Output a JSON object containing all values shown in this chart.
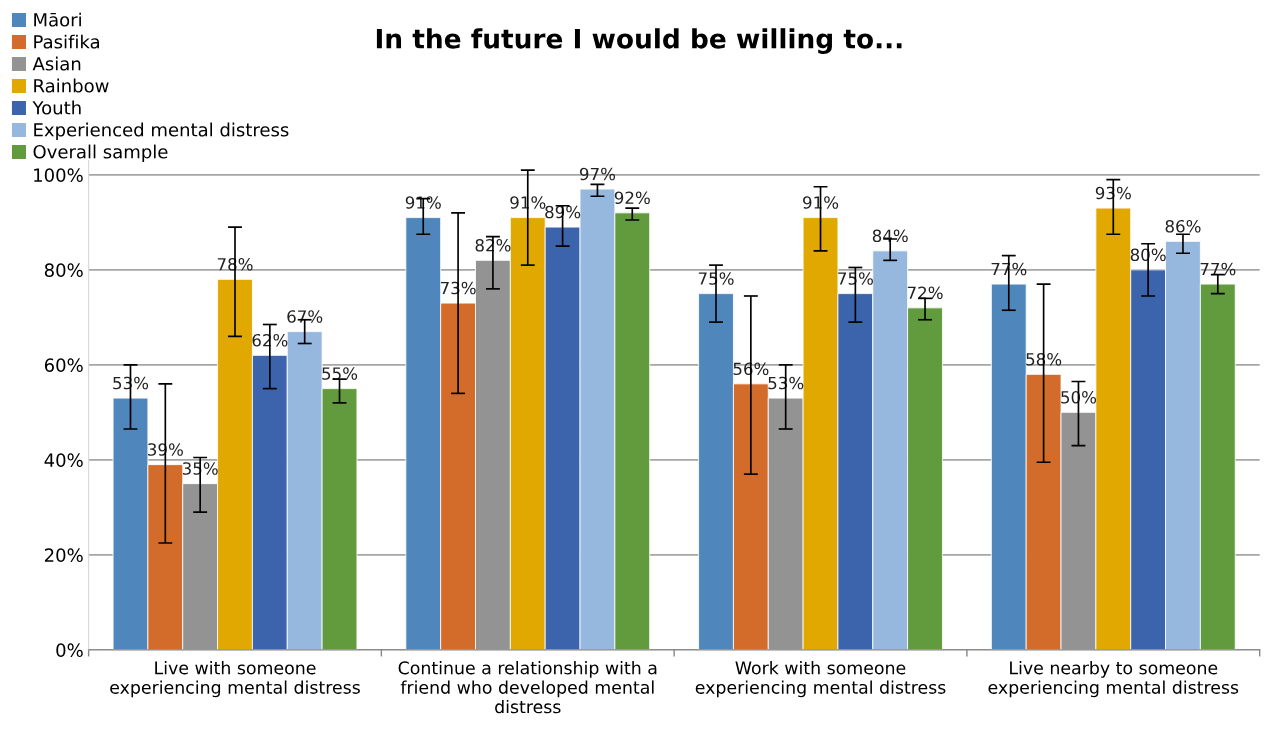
{
  "chart_data": {
    "type": "bar",
    "title": "In the future I would be willing to...",
    "categories": [
      "Live with someone\nexperiencing mental distress",
      "Continue a relationship with a\nfriend who developed mental\ndistress",
      "Work with someone\nexperiencing mental distress",
      "Live nearby to someone\nexperiencing mental distress"
    ],
    "series": [
      {
        "name": "Māori",
        "color": "#4f87bd",
        "values": [
          53,
          91,
          75,
          77
        ],
        "errors": [
          [
            46.5,
            60
          ],
          [
            87.5,
            95
          ],
          [
            69,
            81
          ],
          [
            71.5,
            83
          ]
        ],
        "value_labels": [
          "53%",
          "91%",
          "75%",
          "77%"
        ]
      },
      {
        "name": "Pasifika",
        "color": "#d36c2b",
        "values": [
          39,
          73,
          56,
          58
        ],
        "errors": [
          [
            22.5,
            56
          ],
          [
            54,
            92
          ],
          [
            37,
            74.5
          ],
          [
            39.5,
            77
          ]
        ],
        "value_labels": [
          "39%",
          "73%",
          "56%",
          "58%"
        ]
      },
      {
        "name": "Asian",
        "color": "#939393",
        "values": [
          35,
          82,
          53,
          50
        ],
        "errors": [
          [
            29,
            40.5
          ],
          [
            76,
            87
          ],
          [
            46.5,
            60
          ],
          [
            43,
            56.5
          ]
        ],
        "value_labels": [
          "35%",
          "82%",
          "53%",
          "50%"
        ]
      },
      {
        "name": "Rainbow",
        "color": "#e0a800",
        "values": [
          78,
          91,
          91,
          93
        ],
        "errors": [
          [
            66,
            89
          ],
          [
            81,
            101
          ],
          [
            84,
            97.5
          ],
          [
            87.5,
            99
          ]
        ],
        "value_labels": [
          "78%",
          "91%",
          "91%",
          "93%"
        ]
      },
      {
        "name": "Youth",
        "color": "#3c64ad",
        "values": [
          62,
          89,
          75,
          80
        ],
        "errors": [
          [
            55,
            68.5
          ],
          [
            85,
            93.5
          ],
          [
            69,
            80.5
          ],
          [
            74.5,
            85.5
          ]
        ],
        "value_labels": [
          "62%",
          "89%",
          "75%",
          "80%"
        ]
      },
      {
        "name": "Experienced mental distress",
        "color": "#97b8de",
        "values": [
          67,
          97,
          84,
          86
        ],
        "errors": [
          [
            64.5,
            69.5
          ],
          [
            95.5,
            98
          ],
          [
            82,
            86.5
          ],
          [
            83.5,
            87.5
          ]
        ],
        "value_labels": [
          "67%",
          "97%",
          "84%",
          "86%"
        ]
      },
      {
        "name": "Overall sample",
        "color": "#629a3e",
        "values": [
          55,
          92,
          72,
          77
        ],
        "errors": [
          [
            52,
            57
          ],
          [
            90.5,
            93
          ],
          [
            69.5,
            74
          ],
          [
            75,
            79
          ]
        ],
        "value_labels": [
          "55%",
          "92%",
          "72%",
          "77%"
        ]
      }
    ],
    "ylim": [
      0,
      103
    ],
    "yticks": [
      {
        "value": 0,
        "label": "0%"
      },
      {
        "value": 20,
        "label": "20%"
      },
      {
        "value": 40,
        "label": "40%"
      },
      {
        "value": 60,
        "label": "60%"
      },
      {
        "value": 80,
        "label": "80%"
      },
      {
        "value": 100,
        "label": "100%"
      }
    ],
    "grid": "y",
    "legend": "top left"
  }
}
